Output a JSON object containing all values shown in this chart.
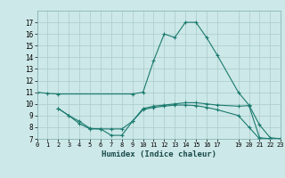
{
  "xlabel": "Humidex (Indice chaleur)",
  "bg_color": "#cde8e8",
  "grid_color": "#aed0d0",
  "line_color": "#1a7a6e",
  "line1_x": [
    0,
    1,
    2,
    9,
    10,
    11,
    12,
    13,
    14,
    15,
    16,
    17,
    19,
    20,
    21,
    22,
    23
  ],
  "line1_y": [
    11,
    10.9,
    10.85,
    10.85,
    11.0,
    13.7,
    16.0,
    15.7,
    17.0,
    17.0,
    15.7,
    14.2,
    11.0,
    9.9,
    8.2,
    7.1,
    7.0
  ],
  "line2_x": [
    2,
    3,
    4,
    5,
    6,
    7,
    8,
    9,
    10,
    11,
    12,
    13,
    14,
    15,
    16,
    17,
    19,
    20,
    21,
    22,
    23
  ],
  "line2_y": [
    9.6,
    9.0,
    8.5,
    7.9,
    7.85,
    7.3,
    7.3,
    8.5,
    9.6,
    9.8,
    9.9,
    10.0,
    10.1,
    10.1,
    10.0,
    9.9,
    9.8,
    9.85,
    7.1,
    7.0,
    7.0
  ],
  "line3_x": [
    2,
    3,
    4,
    5,
    6,
    7,
    8,
    9,
    10,
    11,
    12,
    13,
    14,
    15,
    16,
    17,
    19,
    20,
    21,
    22,
    23
  ],
  "line3_y": [
    9.6,
    9.0,
    8.3,
    7.85,
    7.85,
    7.85,
    7.85,
    8.5,
    9.5,
    9.7,
    9.8,
    9.9,
    9.9,
    9.85,
    9.7,
    9.5,
    9.0,
    8.0,
    7.0,
    7.0,
    7.0
  ],
  "ylim": [
    7,
    18
  ],
  "xlim": [
    0,
    23
  ],
  "yticks": [
    7,
    8,
    9,
    10,
    11,
    12,
    13,
    14,
    15,
    16,
    17
  ],
  "xticks": [
    0,
    1,
    2,
    3,
    4,
    5,
    6,
    7,
    8,
    9,
    10,
    11,
    12,
    13,
    14,
    15,
    16,
    17,
    19,
    20,
    21,
    22,
    23
  ],
  "xtick_labels": [
    "0",
    "1",
    "2",
    "3",
    "4",
    "5",
    "6",
    "7",
    "8",
    "9",
    "10",
    "11",
    "12",
    "13",
    "14",
    "15",
    "16",
    "17",
    "19",
    "20",
    "21",
    "22",
    "23"
  ]
}
